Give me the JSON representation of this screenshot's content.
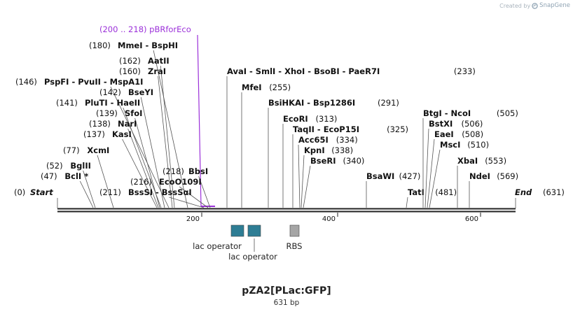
{
  "credit": {
    "prefix": "Created by",
    "brand": "SnapGene"
  },
  "plasmid": {
    "name": "pZA2[PLac:GFP]",
    "size_label": "631 bp",
    "length": 631
  },
  "colors": {
    "primer": "#9b30d9",
    "feature_operator": "#2e7d94",
    "feature_rbs": "#a5a5a5",
    "line": "#555555",
    "text": "#111111"
  },
  "primer": {
    "range": "(200 .. 218)",
    "name": "pBRforEco",
    "start": 200,
    "end": 218
  },
  "enzymes": [
    {
      "pos": "(180)",
      "names": [
        "MmeI",
        "BspHI"
      ],
      "site": 180
    },
    {
      "pos": "(162)",
      "names": [
        "AatII"
      ],
      "site": 162
    },
    {
      "pos": "(160)",
      "names": [
        "ZraI"
      ],
      "site": 160
    },
    {
      "pos": "(146)",
      "names": [
        "PspFI",
        "PvuII",
        "MspA1I"
      ],
      "site": 146
    },
    {
      "pos": "(142)",
      "names": [
        "BseYI"
      ],
      "site": 142
    },
    {
      "pos": "(141)",
      "names": [
        "PluTI",
        "HaeII"
      ],
      "site": 141
    },
    {
      "pos": "(139)",
      "names": [
        "SfoI"
      ],
      "site": 139
    },
    {
      "pos": "(138)",
      "names": [
        "NarI"
      ],
      "site": 138
    },
    {
      "pos": "(137)",
      "names": [
        "KasI"
      ],
      "site": 137
    },
    {
      "pos": "(77)",
      "names": [
        "XcmI"
      ],
      "site": 77
    },
    {
      "pos": "(52)",
      "names": [
        "BglII"
      ],
      "site": 52
    },
    {
      "pos": "(47)",
      "names": [
        "BclI *"
      ],
      "site": 47
    },
    {
      "pos": "(218)",
      "names": [
        "BbsI"
      ],
      "site": 218,
      "label_first": true
    },
    {
      "pos": "(216)",
      "names": [
        "EcoO109I"
      ],
      "site": 216
    },
    {
      "pos": "(211)",
      "names": [
        "BssSI",
        "BssSαI"
      ],
      "site": 211
    },
    {
      "pos": "(233)",
      "names": [
        "AvaI",
        "SmlI",
        "XhoI",
        "BsoBI",
        "PaeR7I"
      ],
      "site": 233,
      "pos_after": true
    },
    {
      "pos": "(255)",
      "names": [
        "MfeI"
      ],
      "site": 255,
      "pos_after": true
    },
    {
      "pos": "(291)",
      "names": [
        "BsiHKAI",
        "Bsp1286I"
      ],
      "site": 291,
      "pos_after": true
    },
    {
      "pos": "(313)",
      "names": [
        "EcoRI"
      ],
      "site": 313,
      "pos_after": true
    },
    {
      "pos": "(325)",
      "names": [
        "TaqII",
        "EcoP15I"
      ],
      "site": 325,
      "pos_after": true
    },
    {
      "pos": "(334)",
      "names": [
        "Acc65I"
      ],
      "site": 334,
      "pos_after": true
    },
    {
      "pos": "(338)",
      "names": [
        "KpnI"
      ],
      "site": 338,
      "pos_after": true
    },
    {
      "pos": "(340)",
      "names": [
        "BseRI"
      ],
      "site": 340,
      "pos_after": true
    },
    {
      "pos": "(427)",
      "names": [
        "BsaWI"
      ],
      "site": 427,
      "pos_after": true
    },
    {
      "pos": "(481)",
      "names": [
        "TatI"
      ],
      "site": 481,
      "pos_after": true
    },
    {
      "pos": "(505)",
      "names": [
        "BtgI",
        "NcoI"
      ],
      "site": 505,
      "pos_after": true
    },
    {
      "pos": "(506)",
      "names": [
        "BstXI"
      ],
      "site": 506,
      "pos_after": true
    },
    {
      "pos": "(508)",
      "names": [
        "EaeI"
      ],
      "site": 508,
      "pos_after": true
    },
    {
      "pos": "(510)",
      "names": [
        "MscI"
      ],
      "site": 510,
      "pos_after": true
    },
    {
      "pos": "(553)",
      "names": [
        "XbaI"
      ],
      "site": 553,
      "pos_after": true
    },
    {
      "pos": "(569)",
      "names": [
        "NdeI"
      ],
      "site": 569,
      "pos_after": true
    }
  ],
  "ends": [
    {
      "pos": "(0)",
      "name": "Start"
    },
    {
      "pos": "(631)",
      "name": "End"
    }
  ],
  "ticks": [
    "200",
    "400",
    "600"
  ],
  "features": [
    {
      "name": "lac operator",
      "type": "operator"
    },
    {
      "name": "lac operator",
      "type": "operator"
    },
    {
      "name": "RBS",
      "type": "rbs"
    }
  ]
}
